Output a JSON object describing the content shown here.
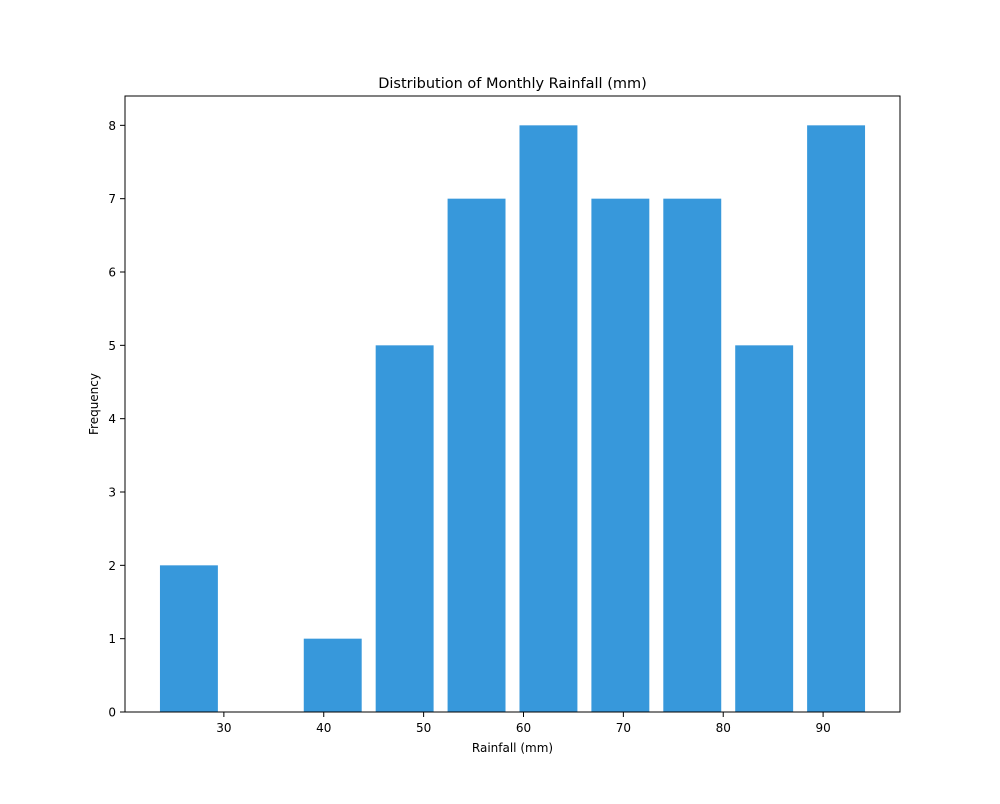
{
  "chart_data": {
    "type": "bar",
    "title": "Distribution of Monthly Rainfall (mm)",
    "xlabel": "Rainfall (mm)",
    "ylabel": "Frequency",
    "bins": [
      {
        "start": 23.6,
        "end": 29.4,
        "count": 2
      },
      {
        "start": 30.8,
        "end": 36.6,
        "count": 0
      },
      {
        "start": 38.0,
        "end": 43.8,
        "count": 1
      },
      {
        "start": 45.2,
        "end": 51.0,
        "count": 5
      },
      {
        "start": 52.4,
        "end": 58.2,
        "count": 7
      },
      {
        "start": 59.6,
        "end": 65.4,
        "count": 8
      },
      {
        "start": 66.8,
        "end": 72.6,
        "count": 7
      },
      {
        "start": 74.0,
        "end": 79.8,
        "count": 7
      },
      {
        "start": 81.2,
        "end": 87.0,
        "count": 5
      },
      {
        "start": 88.4,
        "end": 94.2,
        "count": 8
      }
    ],
    "xlim": [
      20.1,
      97.7
    ],
    "ylim": [
      0,
      8.4
    ],
    "xticks": [
      30,
      40,
      50,
      60,
      70,
      80,
      90
    ],
    "yticks": [
      0,
      1,
      2,
      3,
      4,
      5,
      6,
      7,
      8
    ],
    "grid": false,
    "legend": "none",
    "colors": {
      "bar": "#3798db",
      "axis": "#000000",
      "background": "#ffffff"
    }
  }
}
